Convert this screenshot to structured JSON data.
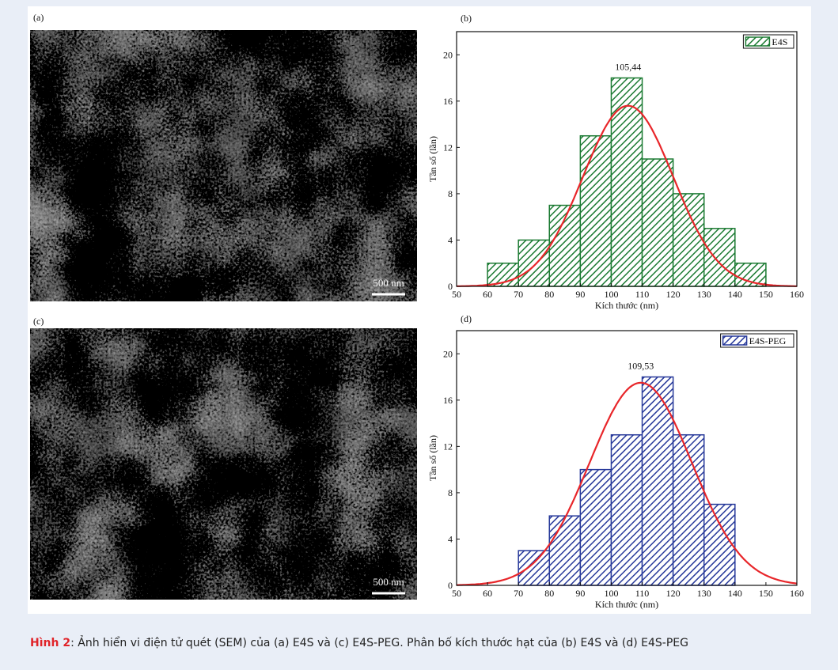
{
  "caption": {
    "label": "Hình 2",
    "text": ": Ảnh hiển vi điện tử quét (SEM) của (a) E4S và (c) E4S-PEG. Phân bố kích thước hạt của (b) E4S và (d) E4S-PEG"
  },
  "sem_images": [
    {
      "label": "(a)",
      "scale_bar": "500 nm"
    },
    {
      "label": "(c)",
      "scale_bar": "500 nm"
    }
  ],
  "chart_data": [
    {
      "type": "histogram",
      "panel_label": "(b)",
      "x_label": "Kích thước (nm)",
      "y_label": "Tần số (lần)",
      "bins": [
        60,
        70,
        80,
        90,
        100,
        110,
        120,
        130,
        140,
        150
      ],
      "series": [
        {
          "name": "E4S",
          "color": "#1b7a32",
          "values": [
            2,
            4,
            7,
            13,
            18,
            11,
            8,
            5,
            2
          ]
        }
      ],
      "fit": {
        "color": "#e8262a",
        "mean": 105.44,
        "sd": 14.6,
        "peak": 15.6
      },
      "annotation": {
        "value": 105.44,
        "label": "105,44"
      },
      "xlim": [
        50,
        160
      ],
      "xticks": [
        50,
        60,
        70,
        80,
        90,
        100,
        110,
        120,
        130,
        140,
        150,
        160
      ],
      "ylim": [
        0,
        22
      ],
      "yticks": [
        0,
        4,
        8,
        12,
        16,
        20
      ],
      "legend": "upper right"
    },
    {
      "type": "histogram",
      "panel_label": "(d)",
      "x_label": "Kích thước (nm)",
      "y_label": "Tần số (lần)",
      "bins": [
        70,
        80,
        90,
        100,
        110,
        120,
        130,
        140
      ],
      "series": [
        {
          "name": "E4S-PEG",
          "color": "#27399a",
          "values": [
            3,
            6,
            10,
            13,
            18,
            13,
            7
          ]
        }
      ],
      "fit": {
        "color": "#e8262a",
        "mean": 109.53,
        "sd": 16.5,
        "peak": 17.5
      },
      "annotation": {
        "value": 109.53,
        "label": "109,53"
      },
      "xlim": [
        50,
        160
      ],
      "xticks": [
        50,
        60,
        70,
        80,
        90,
        100,
        110,
        120,
        130,
        140,
        150,
        160
      ],
      "ylim": [
        0,
        22
      ],
      "yticks": [
        0,
        4,
        8,
        12,
        16,
        20
      ],
      "legend": "upper right"
    }
  ]
}
